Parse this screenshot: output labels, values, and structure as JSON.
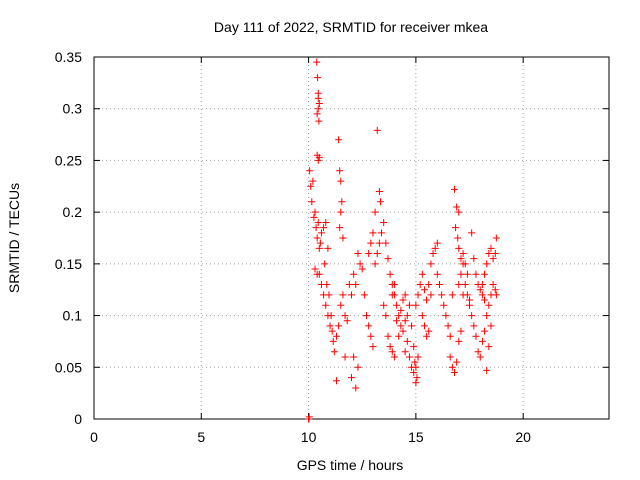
{
  "chart_data": {
    "type": "scatter",
    "title": "Day 111 of 2022, SRMTID for receiver mkea",
    "xlabel": "GPS time / hours",
    "ylabel": "SRMTID / TECUs",
    "xlim": [
      0,
      24
    ],
    "ylim": [
      0,
      0.35
    ],
    "xticks": [
      0,
      5,
      10,
      15,
      20
    ],
    "xtick_labels": [
      "0",
      "5",
      "10",
      "15",
      "20"
    ],
    "yticks": [
      0,
      0.05,
      0.1,
      0.15,
      0.2,
      0.25,
      0.3,
      0.35
    ],
    "ytick_labels": [
      "0",
      "0.05",
      "0.1",
      "0.15",
      "0.2",
      "0.25",
      "0.3",
      "0.35"
    ],
    "grid": true,
    "marker": "+",
    "series": [
      {
        "name": "SRMTID",
        "color": "#ff0000",
        "points": [
          [
            10.0,
            0.0
          ],
          [
            10.02,
            0.0
          ],
          [
            10.03,
            0.002
          ],
          [
            10.05,
            0.24
          ],
          [
            10.1,
            0.225
          ],
          [
            10.15,
            0.21
          ],
          [
            10.2,
            0.23
          ],
          [
            10.25,
            0.195
          ],
          [
            10.3,
            0.2
          ],
          [
            10.35,
            0.185
          ],
          [
            10.4,
            0.175
          ],
          [
            10.45,
            0.19
          ],
          [
            10.5,
            0.165
          ],
          [
            10.55,
            0.17
          ],
          [
            10.6,
            0.18
          ],
          [
            10.7,
            0.185
          ],
          [
            10.8,
            0.19
          ],
          [
            10.9,
            0.165
          ],
          [
            10.38,
            0.345
          ],
          [
            10.42,
            0.33
          ],
          [
            10.45,
            0.31
          ],
          [
            10.45,
            0.3
          ],
          [
            10.4,
            0.295
          ],
          [
            10.48,
            0.288
          ],
          [
            10.5,
            0.305
          ],
          [
            10.45,
            0.315
          ],
          [
            10.4,
            0.255
          ],
          [
            10.45,
            0.25
          ],
          [
            10.5,
            0.253
          ],
          [
            10.3,
            0.145
          ],
          [
            10.4,
            0.14
          ],
          [
            10.5,
            0.14
          ],
          [
            10.6,
            0.13
          ],
          [
            10.7,
            0.12
          ],
          [
            10.8,
            0.11
          ],
          [
            10.9,
            0.1
          ],
          [
            11.0,
            0.09
          ],
          [
            10.75,
            0.15
          ],
          [
            10.85,
            0.13
          ],
          [
            10.95,
            0.12
          ],
          [
            11.05,
            0.1
          ],
          [
            11.1,
            0.085
          ],
          [
            11.15,
            0.075
          ],
          [
            11.2,
            0.065
          ],
          [
            11.3,
            0.08
          ],
          [
            11.4,
            0.09
          ],
          [
            11.5,
            0.11
          ],
          [
            11.6,
            0.12
          ],
          [
            11.7,
            0.1
          ],
          [
            11.8,
            0.095
          ],
          [
            11.9,
            0.13
          ],
          [
            12.0,
            0.12
          ],
          [
            11.4,
            0.27
          ],
          [
            11.45,
            0.24
          ],
          [
            11.5,
            0.23
          ],
          [
            11.55,
            0.21
          ],
          [
            11.5,
            0.2
          ],
          [
            11.45,
            0.185
          ],
          [
            11.6,
            0.175
          ],
          [
            11.3,
            0.037
          ],
          [
            11.7,
            0.06
          ],
          [
            12.0,
            0.04
          ],
          [
            12.1,
            0.06
          ],
          [
            12.2,
            0.03
          ],
          [
            12.3,
            0.05
          ],
          [
            12.1,
            0.14
          ],
          [
            12.2,
            0.13
          ],
          [
            12.3,
            0.16
          ],
          [
            12.4,
            0.15
          ],
          [
            12.5,
            0.145
          ],
          [
            12.6,
            0.12
          ],
          [
            12.7,
            0.1
          ],
          [
            12.8,
            0.09
          ],
          [
            12.9,
            0.08
          ],
          [
            13.0,
            0.07
          ],
          [
            13.1,
            0.15
          ],
          [
            13.2,
            0.16
          ],
          [
            13.3,
            0.17
          ],
          [
            13.4,
            0.18
          ],
          [
            13.5,
            0.19
          ],
          [
            13.6,
            0.17
          ],
          [
            13.2,
            0.279
          ],
          [
            13.3,
            0.22
          ],
          [
            13.35,
            0.21
          ],
          [
            13.1,
            0.2
          ],
          [
            13.0,
            0.18
          ],
          [
            12.9,
            0.17
          ],
          [
            12.8,
            0.16
          ],
          [
            13.7,
            0.155
          ],
          [
            13.8,
            0.14
          ],
          [
            13.9,
            0.13
          ],
          [
            14.0,
            0.12
          ],
          [
            14.1,
            0.11
          ],
          [
            14.2,
            0.1
          ],
          [
            14.3,
            0.09
          ],
          [
            14.4,
            0.085
          ],
          [
            14.5,
            0.095
          ],
          [
            14.6,
            0.1
          ],
          [
            14.7,
            0.11
          ],
          [
            14.8,
            0.09
          ],
          [
            14.9,
            0.07
          ],
          [
            15.0,
            0.05
          ],
          [
            15.05,
            0.04
          ],
          [
            15.1,
            0.06
          ],
          [
            14.7,
            0.06
          ],
          [
            14.8,
            0.05
          ],
          [
            14.9,
            0.045
          ],
          [
            15.0,
            0.035
          ],
          [
            14.95,
            0.055
          ],
          [
            14.6,
            0.075
          ],
          [
            14.5,
            0.065
          ],
          [
            13.9,
            0.12
          ],
          [
            14.0,
            0.13
          ],
          [
            14.1,
            0.095
          ],
          [
            14.2,
            0.08
          ],
          [
            14.3,
            0.105
          ],
          [
            14.4,
            0.115
          ],
          [
            14.5,
            0.12
          ],
          [
            13.5,
            0.11
          ],
          [
            13.6,
            0.1
          ],
          [
            13.7,
            0.08
          ],
          [
            13.8,
            0.07
          ],
          [
            13.9,
            0.065
          ],
          [
            14.0,
            0.06
          ],
          [
            15.0,
            0.11
          ],
          [
            15.1,
            0.12
          ],
          [
            15.2,
            0.13
          ],
          [
            15.3,
            0.14
          ],
          [
            15.4,
            0.125
          ],
          [
            15.5,
            0.115
          ],
          [
            15.6,
            0.13
          ],
          [
            15.7,
            0.15
          ],
          [
            15.3,
            0.1
          ],
          [
            15.4,
            0.09
          ],
          [
            15.5,
            0.08
          ],
          [
            15.6,
            0.085
          ],
          [
            15.7,
            0.12
          ],
          [
            15.8,
            0.16
          ],
          [
            15.9,
            0.165
          ],
          [
            16.0,
            0.17
          ],
          [
            16.0,
            0.14
          ],
          [
            16.1,
            0.13
          ],
          [
            16.2,
            0.12
          ],
          [
            16.3,
            0.11
          ],
          [
            16.4,
            0.1
          ],
          [
            16.5,
            0.09
          ],
          [
            16.6,
            0.08
          ],
          [
            16.7,
            0.12
          ],
          [
            16.8,
            0.222
          ],
          [
            16.9,
            0.205
          ],
          [
            17.0,
            0.2
          ],
          [
            16.85,
            0.185
          ],
          [
            16.95,
            0.175
          ],
          [
            17.0,
            0.165
          ],
          [
            17.1,
            0.155
          ],
          [
            17.2,
            0.15
          ],
          [
            16.6,
            0.06
          ],
          [
            16.7,
            0.05
          ],
          [
            16.8,
            0.045
          ],
          [
            16.9,
            0.055
          ],
          [
            17.0,
            0.075
          ],
          [
            17.1,
            0.085
          ],
          [
            17.2,
            0.12
          ],
          [
            17.3,
            0.13
          ],
          [
            17.4,
            0.14
          ],
          [
            17.5,
            0.11
          ],
          [
            17.6,
            0.1
          ],
          [
            17.7,
            0.09
          ],
          [
            17.8,
            0.08
          ],
          [
            17.9,
            0.065
          ],
          [
            17.6,
            0.18
          ],
          [
            17.7,
            0.155
          ],
          [
            17.8,
            0.14
          ],
          [
            17.9,
            0.13
          ],
          [
            18.0,
            0.125
          ],
          [
            18.1,
            0.12
          ],
          [
            18.2,
            0.115
          ],
          [
            17.0,
            0.13
          ],
          [
            17.1,
            0.14
          ],
          [
            17.2,
            0.16
          ],
          [
            17.3,
            0.15
          ],
          [
            17.4,
            0.12
          ],
          [
            17.5,
            0.115
          ],
          [
            18.1,
            0.13
          ],
          [
            18.2,
            0.14
          ],
          [
            18.3,
            0.15
          ],
          [
            18.4,
            0.16
          ],
          [
            18.5,
            0.165
          ],
          [
            18.6,
            0.155
          ],
          [
            18.7,
            0.16
          ],
          [
            18.75,
            0.175
          ],
          [
            18.3,
            0.1
          ],
          [
            18.4,
            0.11
          ],
          [
            18.5,
            0.12
          ],
          [
            18.6,
            0.13
          ],
          [
            18.7,
            0.125
          ],
          [
            18.75,
            0.12
          ],
          [
            18.0,
            0.06
          ],
          [
            18.1,
            0.075
          ],
          [
            18.2,
            0.085
          ],
          [
            18.3,
            0.047
          ],
          [
            18.4,
            0.07
          ],
          [
            18.5,
            0.09
          ]
        ]
      }
    ]
  }
}
